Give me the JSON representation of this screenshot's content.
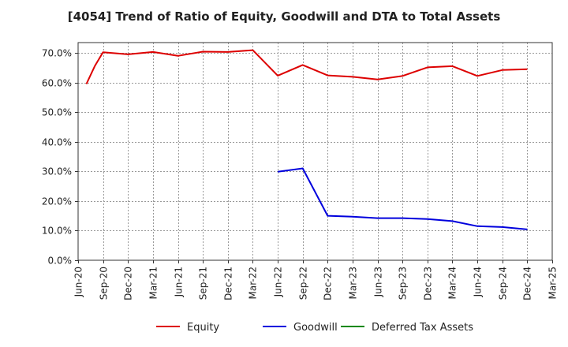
{
  "chart_data": {
    "type": "line",
    "title": "[4054]  Trend of Ratio of Equity, Goodwill and DTA to Total Assets",
    "xlabel": "",
    "ylabel": "",
    "x_ticks": [
      "Jun-20",
      "Sep-20",
      "Dec-20",
      "Mar-21",
      "Jun-21",
      "Sep-21",
      "Dec-21",
      "Mar-22",
      "Jun-22",
      "Sep-22",
      "Dec-22",
      "Mar-23",
      "Jun-23",
      "Sep-23",
      "Dec-23",
      "Mar-24",
      "Jun-24",
      "Sep-24",
      "Dec-24",
      "Mar-25"
    ],
    "ylim": [
      0,
      70
    ],
    "y_ticks": [
      "0.0%",
      "10.0%",
      "20.0%",
      "30.0%",
      "40.0%",
      "50.0%",
      "60.0%",
      "70.0%"
    ],
    "grid": true,
    "legend_position": "bottom",
    "series": [
      {
        "name": "Equity",
        "color": "#dd0000",
        "points": [
          {
            "x": "Jul-20",
            "y": 59.5
          },
          {
            "x": "Aug-20",
            "y": 65.5
          },
          {
            "x": "Sep-20",
            "y": 70.2
          },
          {
            "x": "Dec-20",
            "y": 69.5
          },
          {
            "x": "Mar-21",
            "y": 70.3
          },
          {
            "x": "Jun-21",
            "y": 69.0
          },
          {
            "x": "Sep-21",
            "y": 70.4
          },
          {
            "x": "Dec-21",
            "y": 70.3
          },
          {
            "x": "Mar-22",
            "y": 70.9
          },
          {
            "x": "Jun-22",
            "y": 62.3
          },
          {
            "x": "Sep-22",
            "y": 65.9
          },
          {
            "x": "Dec-22",
            "y": 62.4
          },
          {
            "x": "Mar-23",
            "y": 61.9
          },
          {
            "x": "Jun-23",
            "y": 61.0
          },
          {
            "x": "Sep-23",
            "y": 62.2
          },
          {
            "x": "Dec-23",
            "y": 65.1
          },
          {
            "x": "Mar-24",
            "y": 65.5
          },
          {
            "x": "Jun-24",
            "y": 62.2
          },
          {
            "x": "Sep-24",
            "y": 64.2
          },
          {
            "x": "Dec-24",
            "y": 64.5
          }
        ]
      },
      {
        "name": "Goodwill",
        "color": "#0000dd",
        "points": [
          {
            "x": "Jun-22",
            "y": 29.9
          },
          {
            "x": "Sep-22",
            "y": 31.0
          },
          {
            "x": "Dec-22",
            "y": 15.0
          },
          {
            "x": "Mar-23",
            "y": 14.7
          },
          {
            "x": "Jun-23",
            "y": 14.2
          },
          {
            "x": "Sep-23",
            "y": 14.2
          },
          {
            "x": "Dec-23",
            "y": 13.9
          },
          {
            "x": "Mar-24",
            "y": 13.2
          },
          {
            "x": "Jun-24",
            "y": 11.5
          },
          {
            "x": "Sep-24",
            "y": 11.2
          },
          {
            "x": "Dec-24",
            "y": 10.4
          }
        ]
      },
      {
        "name": "Deferred Tax Assets",
        "color": "#008800",
        "points": []
      }
    ]
  }
}
